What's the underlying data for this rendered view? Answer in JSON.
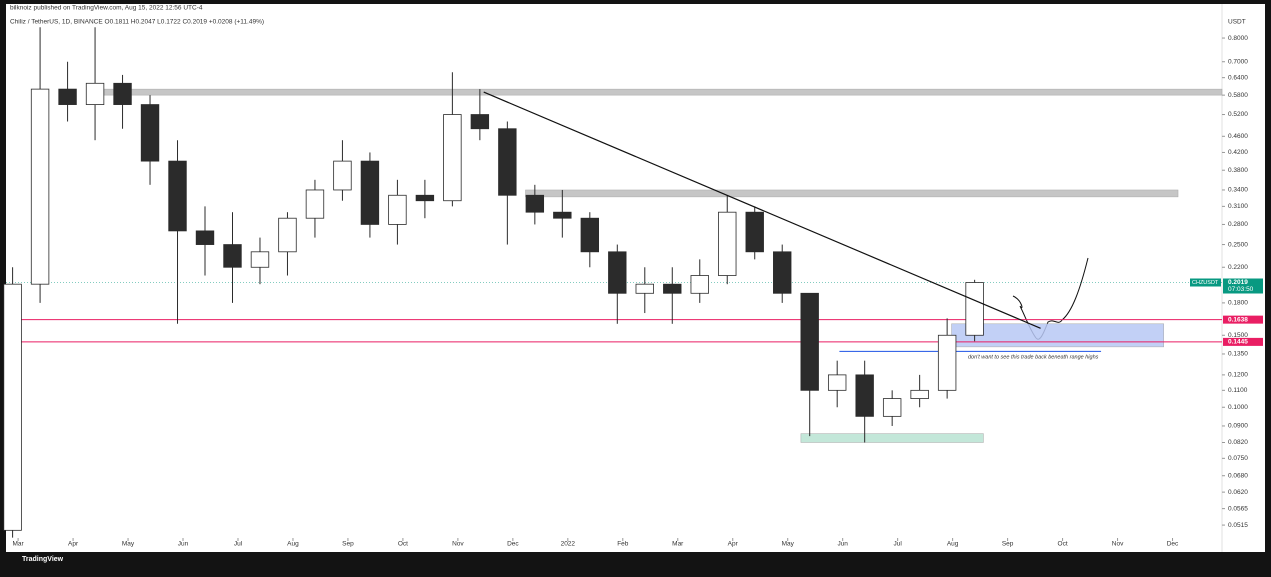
{
  "chart_data": {
    "type": "candlestick",
    "title": "bilknoiz published on TradingView.com, Aug 15, 2022 12:56 UTC-4",
    "subtitle": "Chiliz / TetherUS, 1D, BINANCE  O0.1811  H0.2047  L0.1722  C0.2019  +0.0208 (+11.49%)",
    "y_axis_label": "USDT",
    "log_scale": true,
    "x": [
      -0.1,
      0.4,
      0.9,
      1.4,
      1.9,
      2.4,
      2.9,
      3.4,
      3.9,
      4.4,
      4.9,
      5.4,
      5.9,
      6.4,
      6.9,
      7.4,
      7.9,
      8.4,
      8.9,
      9.4,
      9.9,
      10.4,
      10.9,
      11.4,
      11.9,
      12.4,
      12.9,
      13.4,
      13.9,
      14.4,
      14.9,
      15.4,
      15.9,
      16.4,
      16.9,
      17.4
    ],
    "open": [
      0.05,
      0.2,
      0.6,
      0.55,
      0.62,
      0.55,
      0.4,
      0.27,
      0.25,
      0.22,
      0.24,
      0.29,
      0.34,
      0.4,
      0.28,
      0.33,
      0.32,
      0.52,
      0.48,
      0.33,
      0.3,
      0.29,
      0.24,
      0.19,
      0.2,
      0.19,
      0.21,
      0.3,
      0.24,
      0.19,
      0.11,
      0.12,
      0.095,
      0.105,
      0.11,
      0.15
    ],
    "high": [
      0.22,
      0.85,
      0.7,
      0.85,
      0.65,
      0.58,
      0.45,
      0.31,
      0.3,
      0.26,
      0.3,
      0.36,
      0.45,
      0.42,
      0.36,
      0.36,
      0.66,
      0.6,
      0.5,
      0.35,
      0.34,
      0.3,
      0.25,
      0.22,
      0.22,
      0.23,
      0.33,
      0.31,
      0.25,
      0.19,
      0.13,
      0.13,
      0.11,
      0.12,
      0.165,
      0.205
    ],
    "low": [
      0.048,
      0.18,
      0.5,
      0.45,
      0.48,
      0.35,
      0.16,
      0.21,
      0.18,
      0.2,
      0.21,
      0.26,
      0.32,
      0.26,
      0.25,
      0.29,
      0.31,
      0.45,
      0.25,
      0.28,
      0.26,
      0.22,
      0.16,
      0.17,
      0.16,
      0.18,
      0.2,
      0.23,
      0.18,
      0.085,
      0.1,
      0.082,
      0.09,
      0.1,
      0.105,
      0.145
    ],
    "close": [
      0.2,
      0.6,
      0.55,
      0.62,
      0.55,
      0.4,
      0.27,
      0.25,
      0.22,
      0.24,
      0.29,
      0.34,
      0.4,
      0.28,
      0.33,
      0.32,
      0.52,
      0.48,
      0.33,
      0.3,
      0.29,
      0.24,
      0.19,
      0.2,
      0.19,
      0.21,
      0.3,
      0.24,
      0.19,
      0.11,
      0.12,
      0.095,
      0.105,
      0.11,
      0.15,
      0.2019
    ],
    "colors": {
      "up": "#ffffff",
      "down": "#2b2b2b",
      "wick": "#2b2b2b"
    },
    "xlim": [
      -0.22,
      21.9
    ],
    "xticks": [
      {
        "value": 0,
        "label": "Mar"
      },
      {
        "value": 1,
        "label": "Apr"
      },
      {
        "value": 2,
        "label": "May"
      },
      {
        "value": 3,
        "label": "Jun"
      },
      {
        "value": 4,
        "label": "Jul"
      },
      {
        "value": 5,
        "label": "Aug"
      },
      {
        "value": 6,
        "label": "Sep"
      },
      {
        "value": 7,
        "label": "Oct"
      },
      {
        "value": 8,
        "label": "Nov"
      },
      {
        "value": 9,
        "label": "Dec"
      },
      {
        "value": 10,
        "label": "2022"
      },
      {
        "value": 11,
        "label": "Feb"
      },
      {
        "value": 12,
        "label": "Mar"
      },
      {
        "value": 13,
        "label": "Apr"
      },
      {
        "value": 14,
        "label": "May"
      },
      {
        "value": 15,
        "label": "Jun"
      },
      {
        "value": 16,
        "label": "Jul"
      },
      {
        "value": 17,
        "label": "Aug"
      },
      {
        "value": 18,
        "label": "Sep"
      },
      {
        "value": 19,
        "label": "Oct"
      },
      {
        "value": 20,
        "label": "Nov"
      },
      {
        "value": 21,
        "label": "Dec"
      }
    ],
    "ylim": [
      0.0487,
      0.916
    ],
    "yticks": [
      {
        "value": 0.8,
        "label": "0.8000"
      },
      {
        "value": 0.7,
        "label": "0.7000"
      },
      {
        "value": 0.64,
        "label": "0.6400"
      },
      {
        "value": 0.58,
        "label": "0.5800"
      },
      {
        "value": 0.52,
        "label": "0.5200"
      },
      {
        "value": 0.46,
        "label": "0.4600"
      },
      {
        "value": 0.42,
        "label": "0.4200"
      },
      {
        "value": 0.38,
        "label": "0.3800"
      },
      {
        "value": 0.34,
        "label": "0.3400"
      },
      {
        "value": 0.31,
        "label": "0.3100"
      },
      {
        "value": 0.28,
        "label": "0.2800"
      },
      {
        "value": 0.25,
        "label": "0.2500"
      },
      {
        "value": 0.22,
        "label": "0.2200"
      },
      {
        "value": 0.18,
        "label": "0.1800"
      },
      {
        "value": 0.15,
        "label": "0.1500"
      },
      {
        "value": 0.135,
        "label": "0.1350"
      },
      {
        "value": 0.12,
        "label": "0.1200"
      },
      {
        "value": 0.11,
        "label": "0.1100"
      },
      {
        "value": 0.1,
        "label": "0.1000"
      },
      {
        "value": 0.09,
        "label": "0.0900"
      },
      {
        "value": 0.082,
        "label": "0.0820"
      },
      {
        "value": 0.075,
        "label": "0.0750"
      },
      {
        "value": 0.068,
        "label": "0.0680"
      },
      {
        "value": 0.062,
        "label": "0.0620"
      },
      {
        "value": 0.0565,
        "label": "0.0565"
      },
      {
        "value": 0.0515,
        "label": "0.0515"
      }
    ],
    "last_price": {
      "symbol": "CHZUSDT",
      "value": 0.2019,
      "countdown": "07:03:50",
      "color": "#089981"
    },
    "levels": [
      {
        "value": 0.1638,
        "color": "#e91e63"
      },
      {
        "value": 0.1445,
        "color": "#e91e63"
      }
    ],
    "zones": [
      {
        "x": [
          1.31,
          21.9
        ],
        "y": [
          0.58,
          0.6
        ],
        "color": "#bdbdbd"
      },
      {
        "x": [
          9.23,
          21.1
        ],
        "y": [
          0.327,
          0.34
        ],
        "color": "#bdbdbd"
      },
      {
        "x": [
          16.98,
          20.84
        ],
        "y": [
          0.1405,
          0.16
        ],
        "color": "#b8c8f5"
      },
      {
        "x": [
          14.24,
          17.56
        ],
        "y": [
          0.082,
          0.0862
        ],
        "color": "#b9e3d3"
      }
    ],
    "hlines": [
      {
        "x": [
          14.94,
          19.7
        ],
        "y": 0.137,
        "color": "#1e53e5"
      }
    ],
    "trendline": {
      "x": [
        8.47,
        18.6
      ],
      "y": [
        0.59,
        0.156
      ],
      "color": "#111111"
    },
    "annotation": "don't want to see this trade back beneath range highs",
    "branding": "TradingView"
  }
}
